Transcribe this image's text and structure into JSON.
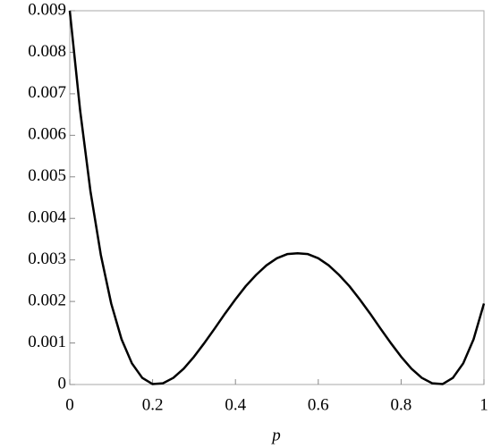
{
  "chart_data": {
    "type": "line",
    "x_label": "p",
    "x": [
      0,
      0.025,
      0.05,
      0.075,
      0.1,
      0.125,
      0.15,
      0.175,
      0.2,
      0.225,
      0.25,
      0.275,
      0.3,
      0.325,
      0.35,
      0.375,
      0.4,
      0.425,
      0.45,
      0.475,
      0.5,
      0.525,
      0.55,
      0.575,
      0.6,
      0.625,
      0.65,
      0.675,
      0.7,
      0.725,
      0.75,
      0.775,
      0.8,
      0.825,
      0.85,
      0.875,
      0.9,
      0.925,
      0.95,
      0.975,
      1
    ],
    "values": [
      0.009,
      0.0066,
      0.00465,
      0.00312,
      0.00195,
      0.00109,
      0.00051,
      0.00016,
      1e-05,
      3e-05,
      0.00016,
      0.00038,
      0.00067,
      0.001,
      0.00135,
      0.00171,
      0.00205,
      0.00237,
      0.00264,
      0.00287,
      0.00304,
      0.00314,
      0.00316,
      0.00314,
      0.00304,
      0.00287,
      0.00264,
      0.00237,
      0.00205,
      0.00171,
      0.00135,
      0.001,
      0.00067,
      0.00038,
      0.00016,
      3e-05,
      1e-05,
      0.00016,
      0.00051,
      0.00109,
      0.00195
    ],
    "color": "#000000",
    "xlim": [
      0,
      1
    ],
    "xticks": [
      0,
      0.2,
      0.4,
      0.6,
      0.8,
      1
    ],
    "ylim": [
      0,
      0.009
    ],
    "yticks": [
      0,
      0.001,
      0.002,
      0.003,
      0.004,
      0.005,
      0.006,
      0.007,
      0.008,
      0.009
    ]
  }
}
